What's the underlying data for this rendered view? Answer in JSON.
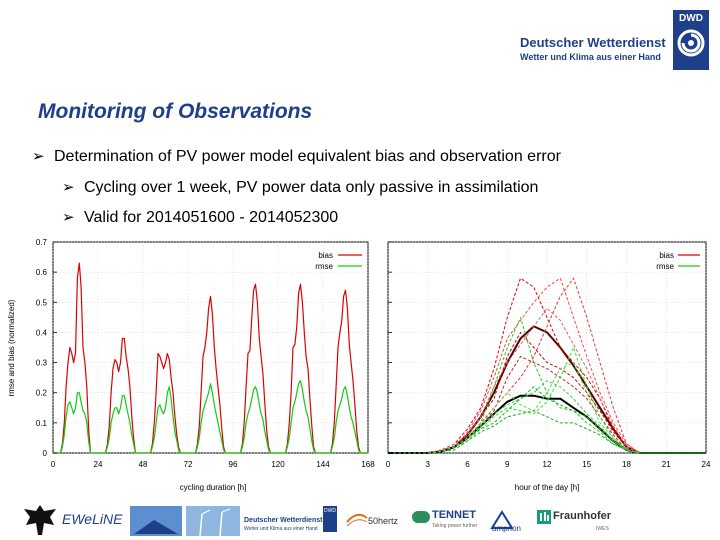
{
  "header": {
    "logo_box_text": "DWD",
    "logo_name": "Deutscher Wetterdienst",
    "logo_slogan": "Wetter und Klima aus einer Hand"
  },
  "title": "Monitoring of Observations",
  "bullets": {
    "main": "Determination of PV power model equivalent bias and observation error",
    "sub1": "Cycling over 1 week, PV power data only passive in assimilation",
    "sub2": "Valid for 2014051600 - 2014052300"
  },
  "colors": {
    "bias": "#dd0000",
    "rmse": "#11cc11",
    "brand": "#1e3f8a"
  },
  "chart_data": [
    {
      "type": "line",
      "xlabel": "cycling duration [h]",
      "ylabel": "rmse and bias (normalized)",
      "xlim": [
        0,
        168
      ],
      "ylim": [
        0,
        0.7
      ],
      "xticks": [
        "0",
        "24",
        "48",
        "72",
        "96",
        "120",
        "144",
        "168"
      ],
      "yticks": [
        "0",
        "0.1",
        "0.2",
        "0.3",
        "0.4",
        "0.5",
        "0.6",
        "0.7"
      ],
      "legend": [
        "bias",
        "rmse"
      ],
      "legend_position": "top-right",
      "series": [
        {
          "name": "bias",
          "x": [
            0,
            4,
            5,
            6,
            7,
            8,
            9,
            10,
            11,
            12,
            13,
            14,
            15,
            16,
            17,
            18,
            19,
            20,
            24,
            28,
            29,
            30,
            31,
            32,
            33,
            34,
            35,
            36,
            37,
            38,
            39,
            40,
            41,
            42,
            43,
            44,
            48,
            52,
            53,
            54,
            55,
            56,
            57,
            58,
            59,
            60,
            61,
            62,
            63,
            64,
            65,
            66,
            67,
            68,
            72,
            76,
            77,
            78,
            79,
            80,
            81,
            82,
            83,
            84,
            85,
            86,
            87,
            88,
            89,
            90,
            91,
            92,
            96,
            100,
            101,
            102,
            103,
            104,
            105,
            106,
            107,
            108,
            109,
            110,
            111,
            112,
            113,
            114,
            115,
            116,
            120,
            124,
            125,
            126,
            127,
            128,
            129,
            130,
            131,
            132,
            133,
            134,
            135,
            136,
            137,
            138,
            139,
            140,
            144,
            148,
            149,
            150,
            151,
            152,
            153,
            154,
            155,
            156,
            157,
            158,
            159,
            160,
            161,
            162,
            163,
            164,
            168
          ],
          "y": [
            0,
            0,
            0.03,
            0.1,
            0.22,
            0.3,
            0.35,
            0.33,
            0.3,
            0.33,
            0.58,
            0.63,
            0.55,
            0.35,
            0.3,
            0.22,
            0.08,
            0,
            0,
            0,
            0.03,
            0.09,
            0.2,
            0.28,
            0.31,
            0.3,
            0.27,
            0.3,
            0.38,
            0.38,
            0.32,
            0.28,
            0.22,
            0.12,
            0.05,
            0,
            0,
            0,
            0.03,
            0.1,
            0.2,
            0.33,
            0.32,
            0.3,
            0.28,
            0.3,
            0.33,
            0.31,
            0.25,
            0.2,
            0.12,
            0.06,
            0.02,
            0,
            0,
            0,
            0.03,
            0.09,
            0.2,
            0.32,
            0.35,
            0.4,
            0.48,
            0.52,
            0.46,
            0.35,
            0.28,
            0.22,
            0.16,
            0.08,
            0.02,
            0,
            0,
            0,
            0.03,
            0.1,
            0.22,
            0.33,
            0.34,
            0.45,
            0.54,
            0.56,
            0.5,
            0.38,
            0.32,
            0.26,
            0.16,
            0.07,
            0.02,
            0,
            0,
            0,
            0.03,
            0.1,
            0.2,
            0.35,
            0.36,
            0.42,
            0.53,
            0.56,
            0.5,
            0.4,
            0.32,
            0.28,
            0.18,
            0.09,
            0.02,
            0,
            0,
            0,
            0.03,
            0.1,
            0.22,
            0.35,
            0.4,
            0.44,
            0.52,
            0.54,
            0.48,
            0.36,
            0.3,
            0.24,
            0.16,
            0.07,
            0.02,
            0,
            0
          ]
        },
        {
          "name": "rmse",
          "x": [
            0,
            4,
            5,
            6,
            7,
            8,
            9,
            10,
            11,
            12,
            13,
            14,
            15,
            16,
            17,
            18,
            19,
            20,
            24,
            28,
            29,
            30,
            31,
            32,
            33,
            34,
            35,
            36,
            37,
            38,
            39,
            40,
            41,
            42,
            43,
            44,
            48,
            52,
            53,
            54,
            55,
            56,
            57,
            58,
            59,
            60,
            61,
            62,
            63,
            64,
            65,
            66,
            67,
            68,
            72,
            76,
            77,
            78,
            79,
            80,
            81,
            82,
            83,
            84,
            85,
            86,
            87,
            88,
            89,
            90,
            91,
            92,
            96,
            100,
            101,
            102,
            103,
            104,
            105,
            106,
            107,
            108,
            109,
            110,
            111,
            112,
            113,
            114,
            115,
            116,
            120,
            124,
            125,
            126,
            127,
            128,
            129,
            130,
            131,
            132,
            133,
            134,
            135,
            136,
            137,
            138,
            139,
            140,
            144,
            148,
            149,
            150,
            151,
            152,
            153,
            154,
            155,
            156,
            157,
            158,
            159,
            160,
            161,
            162,
            163,
            164,
            168
          ],
          "y": [
            0,
            0,
            0.02,
            0.06,
            0.12,
            0.16,
            0.17,
            0.15,
            0.13,
            0.15,
            0.2,
            0.2,
            0.17,
            0.14,
            0.13,
            0.1,
            0.04,
            0,
            0,
            0,
            0.02,
            0.05,
            0.1,
            0.13,
            0.15,
            0.15,
            0.13,
            0.15,
            0.19,
            0.19,
            0.16,
            0.13,
            0.1,
            0.06,
            0.03,
            0,
            0,
            0,
            0.02,
            0.05,
            0.1,
            0.15,
            0.16,
            0.14,
            0.13,
            0.15,
            0.2,
            0.22,
            0.18,
            0.12,
            0.07,
            0.04,
            0.01,
            0,
            0,
            0,
            0.02,
            0.05,
            0.1,
            0.14,
            0.16,
            0.18,
            0.2,
            0.23,
            0.2,
            0.16,
            0.13,
            0.1,
            0.07,
            0.04,
            0.01,
            0,
            0,
            0,
            0.02,
            0.05,
            0.1,
            0.13,
            0.15,
            0.18,
            0.21,
            0.22,
            0.2,
            0.16,
            0.13,
            0.11,
            0.07,
            0.04,
            0.01,
            0,
            0,
            0,
            0.02,
            0.05,
            0.1,
            0.15,
            0.17,
            0.2,
            0.23,
            0.24,
            0.21,
            0.17,
            0.14,
            0.12,
            0.08,
            0.04,
            0.01,
            0,
            0,
            0,
            0.02,
            0.05,
            0.1,
            0.14,
            0.16,
            0.18,
            0.21,
            0.22,
            0.19,
            0.15,
            0.12,
            0.1,
            0.07,
            0.04,
            0.01,
            0,
            0
          ]
        }
      ]
    },
    {
      "type": "line",
      "xlabel": "hour of the day [h]",
      "xlim": [
        0,
        24
      ],
      "ylim": [
        0,
        0.7
      ],
      "xticks": [
        "0",
        "3",
        "6",
        "9",
        "12",
        "15",
        "18",
        "21",
        "24"
      ],
      "legend": [
        "bias",
        "rmse"
      ],
      "legend_position": "top-right",
      "x": [
        0,
        3,
        4,
        5,
        6,
        7,
        8,
        9,
        10,
        11,
        12,
        13,
        14,
        15,
        16,
        17,
        18,
        19,
        24
      ],
      "series": [
        {
          "name": "bias (mean)",
          "color": "#550000",
          "width": 2,
          "values": [
            0,
            0,
            0.005,
            0.02,
            0.06,
            0.12,
            0.2,
            0.3,
            0.38,
            0.42,
            0.4,
            0.35,
            0.29,
            0.22,
            0.15,
            0.08,
            0.02,
            0,
            0
          ]
        },
        {
          "name": "rmse (mean)",
          "color": "#000000",
          "width": 2,
          "values": [
            0,
            0,
            0.005,
            0.02,
            0.05,
            0.09,
            0.13,
            0.17,
            0.19,
            0.19,
            0.18,
            0.18,
            0.15,
            0.12,
            0.08,
            0.04,
            0.01,
            0,
            0
          ]
        },
        {
          "name": "bias day 1",
          "color": "#dd0000",
          "width": 1,
          "dashed": true,
          "values": [
            0,
            0,
            0.01,
            0.03,
            0.08,
            0.15,
            0.28,
            0.45,
            0.58,
            0.55,
            0.45,
            0.35,
            0.3,
            0.25,
            0.18,
            0.08,
            0.02,
            0,
            0
          ]
        },
        {
          "name": "bias day 2",
          "color": "#ee3333",
          "width": 1,
          "dashed": true,
          "values": [
            0,
            0,
            0.01,
            0.02,
            0.05,
            0.1,
            0.15,
            0.2,
            0.25,
            0.32,
            0.42,
            0.52,
            0.58,
            0.45,
            0.3,
            0.15,
            0.03,
            0,
            0
          ]
        },
        {
          "name": "bias day 3",
          "color": "#cc0000",
          "width": 1,
          "dashed": true,
          "values": [
            0,
            0,
            0.005,
            0.02,
            0.06,
            0.12,
            0.18,
            0.32,
            0.4,
            0.35,
            0.3,
            0.28,
            0.25,
            0.2,
            0.14,
            0.07,
            0.02,
            0,
            0
          ]
        },
        {
          "name": "bias day 4",
          "color": "#ff4444",
          "width": 1,
          "dashed": true,
          "values": [
            0,
            0,
            0.01,
            0.02,
            0.07,
            0.14,
            0.25,
            0.38,
            0.44,
            0.5,
            0.55,
            0.58,
            0.45,
            0.32,
            0.2,
            0.1,
            0.03,
            0,
            0
          ]
        },
        {
          "name": "bias day 5",
          "color": "#bb2222",
          "width": 1,
          "dashed": true,
          "values": [
            0,
            0,
            0.005,
            0.02,
            0.05,
            0.09,
            0.14,
            0.25,
            0.32,
            0.3,
            0.28,
            0.25,
            0.22,
            0.18,
            0.12,
            0.06,
            0.01,
            0,
            0
          ]
        },
        {
          "name": "bias day 6",
          "color": "#e06060",
          "width": 1,
          "dashed": true,
          "values": [
            0,
            0,
            0.01,
            0.03,
            0.06,
            0.12,
            0.22,
            0.3,
            0.36,
            0.42,
            0.48,
            0.44,
            0.36,
            0.28,
            0.18,
            0.09,
            0.02,
            0,
            0
          ]
        },
        {
          "name": "rmse day 1",
          "color": "#22cc22",
          "width": 1,
          "dashed": true,
          "values": [
            0,
            0,
            0.005,
            0.02,
            0.05,
            0.1,
            0.22,
            0.35,
            0.45,
            0.3,
            0.2,
            0.15,
            0.14,
            0.1,
            0.07,
            0.03,
            0.01,
            0,
            0
          ]
        },
        {
          "name": "rmse day 2",
          "color": "#33dd33",
          "width": 1,
          "dashed": true,
          "values": [
            0,
            0,
            0.005,
            0.02,
            0.04,
            0.08,
            0.12,
            0.15,
            0.14,
            0.13,
            0.17,
            0.25,
            0.35,
            0.22,
            0.12,
            0.05,
            0.01,
            0,
            0
          ]
        },
        {
          "name": "rmse day 3",
          "color": "#11bb11",
          "width": 1,
          "dashed": true,
          "values": [
            0,
            0,
            0.005,
            0.02,
            0.05,
            0.08,
            0.1,
            0.14,
            0.18,
            0.22,
            0.18,
            0.16,
            0.14,
            0.12,
            0.08,
            0.04,
            0.01,
            0,
            0
          ]
        },
        {
          "name": "rmse day 4",
          "color": "#55dd55",
          "width": 1,
          "dashed": true,
          "values": [
            0,
            0,
            0.005,
            0.02,
            0.05,
            0.09,
            0.15,
            0.2,
            0.16,
            0.14,
            0.2,
            0.28,
            0.3,
            0.2,
            0.1,
            0.05,
            0.01,
            0,
            0
          ]
        },
        {
          "name": "rmse day 5",
          "color": "#22aa22",
          "width": 1,
          "dashed": true,
          "values": [
            0,
            0,
            0.005,
            0.01,
            0.04,
            0.07,
            0.09,
            0.12,
            0.13,
            0.14,
            0.12,
            0.1,
            0.1,
            0.08,
            0.06,
            0.03,
            0.01,
            0,
            0
          ]
        },
        {
          "name": "rmse day 6",
          "color": "#44cc44",
          "width": 1,
          "dashed": true,
          "values": [
            0,
            0,
            0.005,
            0.02,
            0.05,
            0.09,
            0.13,
            0.16,
            0.18,
            0.2,
            0.24,
            0.22,
            0.18,
            0.13,
            0.09,
            0.04,
            0.01,
            0,
            0
          ]
        }
      ]
    }
  ],
  "footer": {
    "ewline": "EWeLiNE",
    "dwd_name": "Deutscher Wetterdienst",
    "dwd_slogan": "Wetter und Klima aus einer Hand",
    "dwd_badge": "DWD",
    "hertz": "50hertz",
    "tennet": "TENNET",
    "tennet_sub": "Taking power further",
    "amprion": "amprion",
    "fraunhofer": "Fraunhofer",
    "fraunhofer_sub": "IWES"
  }
}
